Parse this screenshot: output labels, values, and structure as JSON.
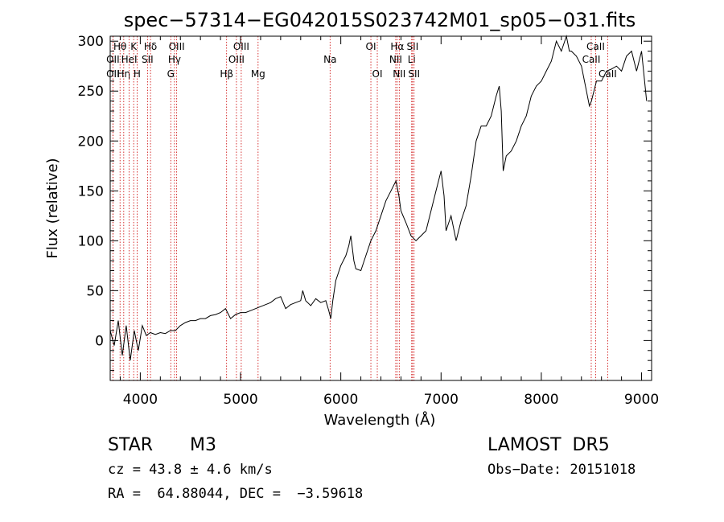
{
  "chart_data": {
    "type": "line",
    "title": "spec−57314−EG042015S023742M01_sp05−031.fits",
    "xlabel": "Wavelength (Å)",
    "ylabel": "Flux (relative)",
    "xlim": [
      3700,
      9100
    ],
    "ylim": [
      -40,
      305
    ],
    "xticks": [
      4000,
      5000,
      6000,
      7000,
      8000,
      9000
    ],
    "yticks": [
      0,
      50,
      100,
      150,
      200,
      250,
      300
    ],
    "grid": false,
    "series": [
      {
        "x": [
          3700,
          3740,
          3780,
          3820,
          3860,
          3900,
          3940,
          3980,
          4020,
          4060,
          4100,
          4150,
          4200,
          4250,
          4300,
          4350,
          4400,
          4450,
          4500,
          4550,
          4600,
          4650,
          4700,
          4750,
          4800,
          4850,
          4900,
          4950,
          5000,
          5050,
          5100,
          5150,
          5200,
          5250,
          5300,
          5350,
          5400,
          5450,
          5500,
          5550,
          5600,
          5620,
          5650,
          5700,
          5750,
          5800,
          5850,
          5880,
          5900,
          5920,
          5950,
          6000,
          6050,
          6080,
          6100,
          6130,
          6150,
          6200,
          6250,
          6300,
          6350,
          6400,
          6450,
          6500,
          6550,
          6580,
          6600,
          6650,
          6700,
          6750,
          6800,
          6850,
          6900,
          6950,
          7000,
          7030,
          7050,
          7100,
          7130,
          7150,
          7200,
          7250,
          7300,
          7350,
          7400,
          7450,
          7500,
          7550,
          7580,
          7600,
          7620,
          7650,
          7700,
          7750,
          7800,
          7850,
          7900,
          7950,
          8000,
          8050,
          8100,
          8150,
          8200,
          8250,
          8280,
          8300,
          8350,
          8400,
          8450,
          8480,
          8500,
          8550,
          8600,
          8650,
          8700,
          8750,
          8800,
          8850,
          8900,
          8950,
          9000,
          9050
        ],
        "values": [
          10,
          -5,
          20,
          -15,
          15,
          -20,
          10,
          -10,
          15,
          5,
          8,
          6,
          8,
          7,
          10,
          10,
          15,
          18,
          20,
          20,
          22,
          22,
          25,
          26,
          28,
          32,
          22,
          26,
          28,
          28,
          30,
          32,
          34,
          36,
          38,
          42,
          44,
          32,
          36,
          38,
          40,
          50,
          40,
          35,
          42,
          38,
          40,
          30,
          22,
          40,
          60,
          75,
          85,
          95,
          105,
          80,
          72,
          70,
          85,
          100,
          110,
          125,
          140,
          150,
          160,
          145,
          130,
          118,
          105,
          100,
          105,
          110,
          130,
          150,
          170,
          145,
          110,
          125,
          110,
          100,
          120,
          135,
          165,
          200,
          215,
          215,
          225,
          245,
          255,
          230,
          170,
          185,
          190,
          200,
          215,
          225,
          245,
          255,
          260,
          270,
          280,
          300,
          290,
          305,
          290,
          290,
          285,
          275,
          250,
          235,
          240,
          260,
          260,
          270,
          272,
          275,
          270,
          285,
          290,
          270,
          290,
          240
        ]
      }
    ],
    "lines": [
      {
        "x": 3798,
        "labels": [
          "Hθ"
        ],
        "row": 1
      },
      {
        "x": 3727,
        "labels": [
          "OII"
        ],
        "row": 2
      },
      {
        "x": 3727,
        "labels": [
          "OII"
        ],
        "row": 3
      },
      {
        "x": 3835,
        "labels": [
          "Hη"
        ],
        "row": 3
      },
      {
        "x": 3889,
        "labels": [
          "HeI"
        ],
        "row": 2
      },
      {
        "x": 3934,
        "labels": [
          "K"
        ],
        "row": 1
      },
      {
        "x": 3968,
        "labels": [
          "H"
        ],
        "row": 3
      },
      {
        "x": 4072,
        "labels": [
          "SII"
        ],
        "row": 2
      },
      {
        "x": 4102,
        "labels": [
          "Hδ"
        ],
        "row": 1
      },
      {
        "x": 4304,
        "labels": [
          "G"
        ],
        "row": 3
      },
      {
        "x": 4341,
        "labels": [
          "Hγ"
        ],
        "row": 2
      },
      {
        "x": 4363,
        "labels": [
          "OIII"
        ],
        "row": 1
      },
      {
        "x": 4861,
        "labels": [
          "Hβ"
        ],
        "row": 3
      },
      {
        "x": 4959,
        "labels": [
          "OIII"
        ],
        "row": 2
      },
      {
        "x": 5007,
        "labels": [
          "OIII"
        ],
        "row": 1
      },
      {
        "x": 5175,
        "labels": [
          "Mg"
        ],
        "row": 3
      },
      {
        "x": 5893,
        "labels": [
          "Na"
        ],
        "row": 2
      },
      {
        "x": 6300,
        "labels": [
          "OI"
        ],
        "row": 1
      },
      {
        "x": 6364,
        "labels": [
          "OI"
        ],
        "row": 3
      },
      {
        "x": 6548,
        "labels": [
          "NII"
        ],
        "row": 2
      },
      {
        "x": 6563,
        "labels": [
          "Hα"
        ],
        "row": 1
      },
      {
        "x": 6583,
        "labels": [
          "NII"
        ],
        "row": 3
      },
      {
        "x": 6707,
        "labels": [
          "Li"
        ],
        "row": 2
      },
      {
        "x": 6716,
        "labels": [
          "SII"
        ],
        "row": 1
      },
      {
        "x": 6731,
        "labels": [
          "SII"
        ],
        "row": 3
      },
      {
        "x": 8498,
        "labels": [
          "CaII"
        ],
        "row": 2
      },
      {
        "x": 8542,
        "labels": [
          "CaII"
        ],
        "row": 1
      },
      {
        "x": 8662,
        "labels": [
          "CaII"
        ],
        "row": 3
      }
    ]
  },
  "info": {
    "class": "STAR",
    "subclass": "M3",
    "survey": "LAMOST  DR5",
    "cz": "cz = 43.8 ± 4.6 km/s",
    "obsdate": "Obs−Date: 20151018",
    "radec": "RA =  64.88044, DEC =  −3.59618"
  },
  "colors": {
    "line_marker": "#cc0000",
    "spectrum": "#000000"
  }
}
